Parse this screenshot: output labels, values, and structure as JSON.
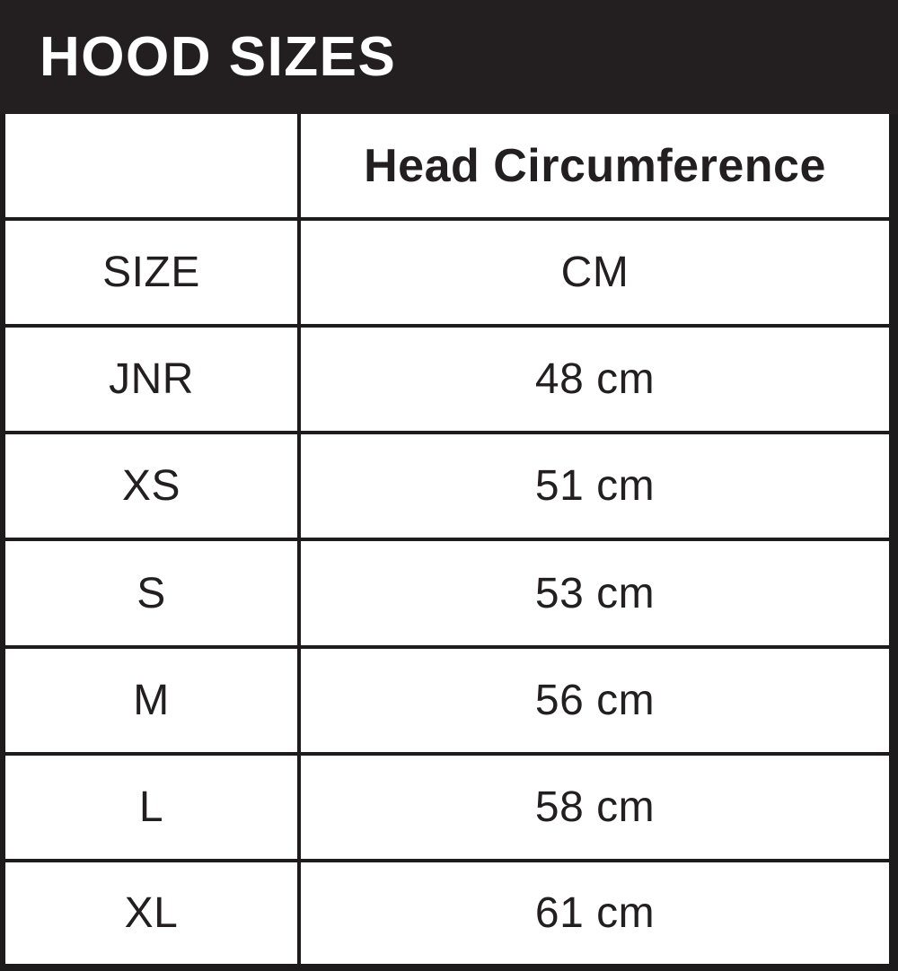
{
  "title": "HOOD SIZES",
  "colors": {
    "bar_bg": "#231f20",
    "border": "#1d1b1c",
    "text": "#231f20",
    "background": "#ffffff"
  },
  "table": {
    "column_header": "Head Circumference",
    "size_label": "SIZE",
    "unit_label": "CM",
    "rows": [
      {
        "size": "JNR",
        "cm": "48 cm"
      },
      {
        "size": "XS",
        "cm": "51 cm"
      },
      {
        "size": "S",
        "cm": "53 cm"
      },
      {
        "size": "M",
        "cm": "56 cm"
      },
      {
        "size": "L",
        "cm": "58 cm"
      },
      {
        "size": "XL",
        "cm": "61 cm"
      }
    ]
  },
  "chart_data": {
    "type": "table",
    "title": "HOOD SIZES",
    "columns": [
      "SIZE",
      "Head Circumference CM"
    ],
    "rows": [
      [
        "JNR",
        "48 cm"
      ],
      [
        "XS",
        "51 cm"
      ],
      [
        "S",
        "53 cm"
      ],
      [
        "M",
        "56 cm"
      ],
      [
        "L",
        "58 cm"
      ],
      [
        "XL",
        "61 cm"
      ]
    ],
    "values_cm": [
      48,
      51,
      53,
      56,
      58,
      61
    ]
  }
}
